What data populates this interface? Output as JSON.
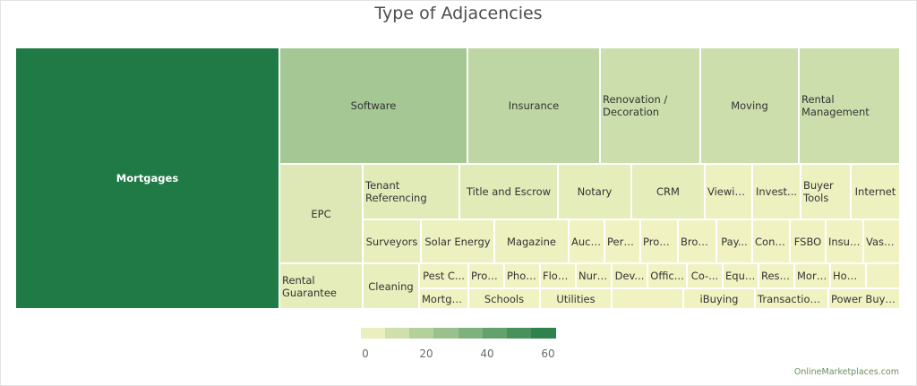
{
  "chart_data": {
    "type": "treemap",
    "title": "Type of Adjacencies",
    "colorscale": {
      "min": 0,
      "max": 60,
      "ticks": [
        0,
        20,
        40,
        60
      ],
      "low": "#f7f7c5",
      "high": "#1f7a45"
    },
    "items": [
      {
        "label": "Mortgages",
        "value": 60
      },
      {
        "label": "Software",
        "value": 23
      },
      {
        "label": "Insurance",
        "value": 16
      },
      {
        "label": "Renovation / Decoration",
        "value": 12
      },
      {
        "label": "Moving",
        "value": 12
      },
      {
        "label": "Rental Management",
        "value": 12
      },
      {
        "label": "EPC",
        "value": 7
      },
      {
        "label": "Tenant Referencing",
        "value": 6
      },
      {
        "label": "Title and Escrow",
        "value": 6
      },
      {
        "label": "Notary",
        "value": 5
      },
      {
        "label": "CRM",
        "value": 5
      },
      {
        "label": "Viewin...",
        "value": 3
      },
      {
        "label": "Invest...",
        "value": 3
      },
      {
        "label": "Buyer Tools",
        "value": 3
      },
      {
        "label": "Internet",
        "value": 3
      },
      {
        "label": "Surveyors",
        "value": 4
      },
      {
        "label": "Solar Energy",
        "value": 3
      },
      {
        "label": "Magazine",
        "value": 3
      },
      {
        "label": "Auct...",
        "value": 2
      },
      {
        "label": "Pers...",
        "value": 2
      },
      {
        "label": "Prop...",
        "value": 2
      },
      {
        "label": "Brok...",
        "value": 2
      },
      {
        "label": "Pay...",
        "value": 2
      },
      {
        "label": "Cons...",
        "value": 2
      },
      {
        "label": "FSBO",
        "value": 2
      },
      {
        "label": "Insur...",
        "value": 2
      },
      {
        "label": "Vast...",
        "value": 2
      },
      {
        "label": "Rental Guarantee",
        "value": 5
      },
      {
        "label": "Cleaning",
        "value": 4
      },
      {
        "label": "Pest C...",
        "value": 2
      },
      {
        "label": "Mortga...",
        "value": 2
      },
      {
        "label": "Prop...",
        "value": 2
      },
      {
        "label": "Phot...",
        "value": 2
      },
      {
        "label": "Flow...",
        "value": 2
      },
      {
        "label": "Nurs...",
        "value": 2
      },
      {
        "label": "Dev...",
        "value": 2
      },
      {
        "label": "Offic...",
        "value": 2
      },
      {
        "label": "Co-...",
        "value": 2
      },
      {
        "label": "Equi...",
        "value": 2
      },
      {
        "label": "Rest...",
        "value": 2
      },
      {
        "label": "Mort...",
        "value": 2
      },
      {
        "label": "Hom...",
        "value": 2
      },
      {
        "label": "",
        "value": 2
      },
      {
        "label": "Schools",
        "value": 2
      },
      {
        "label": "Utilities",
        "value": 2
      },
      {
        "label": "",
        "value": 2
      },
      {
        "label": "iBuying",
        "value": 2
      },
      {
        "label": "Transaction...",
        "value": 2
      },
      {
        "label": "Power Buye...",
        "value": 2
      }
    ]
  },
  "footer": "OnlineMarketplaces.com"
}
